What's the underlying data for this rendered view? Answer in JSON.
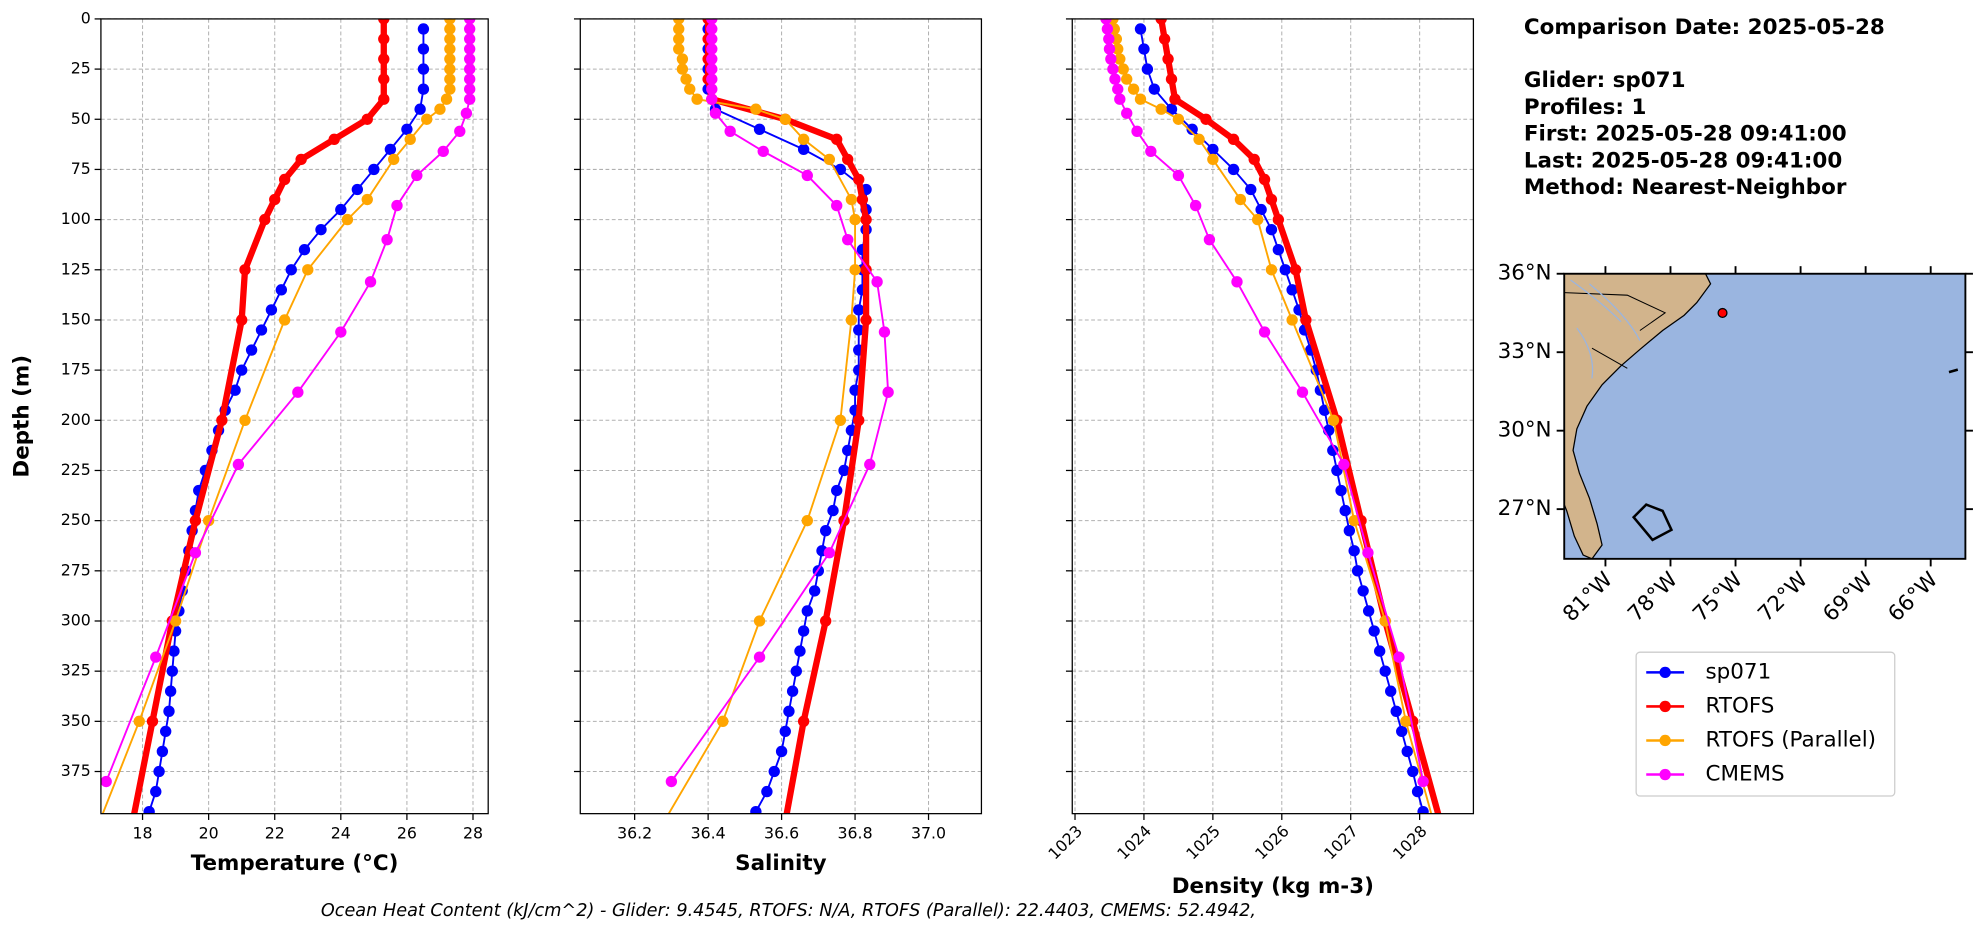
{
  "chart_data": [
    {
      "type": "line",
      "xlabel": "Temperature (°C)",
      "ylabel": "Depth (m)",
      "xlim": [
        16.74,
        28.46
      ],
      "ylim": [
        396,
        0
      ],
      "grid": true,
      "xticks": [
        18,
        20,
        22,
        24,
        26,
        28
      ],
      "yticks": [
        0,
        25,
        50,
        75,
        100,
        125,
        150,
        175,
        200,
        225,
        250,
        275,
        300,
        325,
        350,
        375
      ],
      "series": [
        {
          "name": "sp071",
          "color": "#0000ff",
          "linewidth": 1.5,
          "y": [
            5,
            15,
            25,
            35,
            45,
            55,
            65,
            75,
            85,
            95,
            105,
            115,
            125,
            135,
            145,
            155,
            165,
            175,
            185,
            195,
            205,
            215,
            225,
            235,
            245,
            255,
            265,
            275,
            285,
            295,
            305,
            315,
            325,
            335,
            345,
            355,
            365,
            375,
            385,
            395
          ],
          "x": [
            26.5,
            26.5,
            26.5,
            26.5,
            26.4,
            26.0,
            25.5,
            25.0,
            24.5,
            24.0,
            23.4,
            22.9,
            22.5,
            22.2,
            21.9,
            21.6,
            21.3,
            21.0,
            20.8,
            20.5,
            20.3,
            20.1,
            19.9,
            19.7,
            19.6,
            19.5,
            19.4,
            19.3,
            19.2,
            19.1,
            19.0,
            18.95,
            18.9,
            18.85,
            18.8,
            18.7,
            18.6,
            18.5,
            18.4,
            18.2
          ]
        },
        {
          "name": "RTOFS",
          "color": "#ff0000",
          "linewidth": 5,
          "y": [
            0,
            10,
            20,
            30,
            40,
            50,
            60,
            70,
            80,
            90,
            100,
            125,
            150,
            200,
            250,
            300,
            350,
            400
          ],
          "x": [
            25.3,
            25.3,
            25.3,
            25.3,
            25.3,
            24.8,
            23.8,
            22.8,
            22.3,
            22.0,
            21.7,
            21.1,
            21.0,
            20.4,
            19.6,
            18.9,
            18.3,
            17.7
          ]
        },
        {
          "name": "RTOFS (Parallel)",
          "color": "#ffa500",
          "linewidth": 1.5,
          "y": [
            0,
            5,
            10,
            15,
            20,
            25,
            30,
            35,
            40,
            45,
            50,
            60,
            70,
            90,
            100,
            125,
            150,
            200,
            250,
            300,
            350,
            400
          ],
          "x": [
            27.3,
            27.3,
            27.3,
            27.3,
            27.3,
            27.3,
            27.3,
            27.3,
            27.2,
            27.0,
            26.6,
            26.1,
            25.6,
            24.8,
            24.2,
            23.0,
            22.3,
            21.1,
            20.0,
            19.0,
            17.9,
            16.7
          ]
        },
        {
          "name": "CMEMS",
          "color": "#ff00ff",
          "linewidth": 1.5,
          "y": [
            0,
            5,
            10,
            15,
            20,
            25,
            30,
            35,
            40,
            47,
            56,
            66,
            78,
            93,
            110,
            131,
            156,
            186,
            222,
            266,
            318,
            380
          ],
          "x": [
            27.9,
            27.9,
            27.9,
            27.9,
            27.9,
            27.9,
            27.9,
            27.9,
            27.9,
            27.8,
            27.6,
            27.1,
            26.3,
            25.7,
            25.4,
            24.9,
            24.0,
            22.7,
            20.9,
            19.6,
            18.4,
            16.9
          ]
        }
      ]
    },
    {
      "type": "line",
      "xlabel": "Salinity",
      "xlim": [
        36.052,
        37.144
      ],
      "ylim": [
        396,
        0
      ],
      "grid": true,
      "xticks": [
        36.2,
        36.4,
        36.6,
        36.8,
        {
          "value": 37.0,
          "label": "37.0"
        }
      ],
      "series": [
        {
          "name": "sp071",
          "color": "#0000ff",
          "linewidth": 1.5,
          "y": [
            5,
            15,
            25,
            35,
            45,
            55,
            65,
            75,
            85,
            95,
            105,
            115,
            125,
            135,
            145,
            155,
            165,
            175,
            185,
            195,
            205,
            215,
            225,
            235,
            245,
            255,
            265,
            275,
            285,
            295,
            305,
            315,
            325,
            335,
            345,
            355,
            365,
            375,
            385,
            395
          ],
          "x": [
            36.4,
            36.4,
            36.4,
            36.4,
            36.42,
            36.54,
            36.66,
            36.76,
            36.83,
            36.83,
            36.83,
            36.82,
            36.82,
            36.82,
            36.81,
            36.81,
            36.81,
            36.81,
            36.8,
            36.8,
            36.79,
            36.78,
            36.77,
            36.75,
            36.74,
            36.72,
            36.71,
            36.7,
            36.69,
            36.67,
            36.66,
            36.65,
            36.64,
            36.63,
            36.62,
            36.61,
            36.6,
            36.58,
            36.56,
            36.53
          ]
        },
        {
          "name": "RTOFS",
          "color": "#ff0000",
          "linewidth": 5,
          "y": [
            0,
            10,
            20,
            30,
            40,
            50,
            60,
            70,
            80,
            90,
            100,
            125,
            150,
            200,
            250,
            300,
            350,
            400
          ],
          "x": [
            36.4,
            36.4,
            36.4,
            36.4,
            36.41,
            36.61,
            36.75,
            36.78,
            36.81,
            36.82,
            36.83,
            36.83,
            36.83,
            36.81,
            36.77,
            36.72,
            36.66,
            36.61
          ]
        },
        {
          "name": "RTOFS (Parallel)",
          "color": "#ffa500",
          "linewidth": 1.5,
          "y": [
            0,
            5,
            10,
            15,
            20,
            25,
            30,
            35,
            40,
            45,
            50,
            60,
            70,
            90,
            100,
            125,
            150,
            200,
            250,
            300,
            350,
            400
          ],
          "x": [
            36.32,
            36.32,
            36.32,
            36.32,
            36.33,
            36.33,
            36.34,
            36.35,
            36.37,
            36.53,
            36.61,
            36.66,
            36.73,
            36.79,
            36.8,
            36.8,
            36.79,
            36.76,
            36.67,
            36.54,
            36.44,
            36.28
          ]
        },
        {
          "name": "CMEMS",
          "color": "#ff00ff",
          "linewidth": 1.5,
          "y": [
            0,
            5,
            10,
            15,
            20,
            25,
            30,
            35,
            40,
            47,
            56,
            66,
            78,
            93,
            110,
            131,
            156,
            186,
            222,
            266,
            318,
            380
          ],
          "x": [
            36.41,
            36.41,
            36.41,
            36.41,
            36.41,
            36.41,
            36.41,
            36.41,
            36.41,
            36.42,
            36.46,
            36.55,
            36.67,
            36.75,
            36.78,
            36.86,
            36.88,
            36.89,
            36.84,
            36.73,
            36.54,
            36.3
          ]
        }
      ]
    },
    {
      "type": "line",
      "xlabel": "Density (kg m-3)",
      "xlim": [
        1022.96,
        1028.78
      ],
      "ylim": [
        396,
        0
      ],
      "grid": true,
      "xtick_rotation": 45,
      "xticks": [
        1023,
        1024,
        1025,
        1026,
        1027,
        1028
      ],
      "series": [
        {
          "name": "sp071",
          "color": "#0000ff",
          "linewidth": 1.5,
          "y": [
            5,
            15,
            25,
            35,
            45,
            55,
            65,
            75,
            85,
            95,
            105,
            115,
            125,
            135,
            145,
            155,
            165,
            175,
            185,
            195,
            205,
            215,
            225,
            235,
            245,
            255,
            265,
            275,
            285,
            295,
            305,
            315,
            325,
            335,
            345,
            355,
            365,
            375,
            385,
            395
          ],
          "x": [
            1023.95,
            1024.0,
            1024.05,
            1024.15,
            1024.4,
            1024.7,
            1025.0,
            1025.3,
            1025.55,
            1025.7,
            1025.85,
            1025.95,
            1026.05,
            1026.15,
            1026.25,
            1026.33,
            1026.42,
            1026.5,
            1026.56,
            1026.62,
            1026.68,
            1026.74,
            1026.8,
            1026.86,
            1026.92,
            1026.98,
            1027.05,
            1027.1,
            1027.18,
            1027.26,
            1027.34,
            1027.42,
            1027.5,
            1027.58,
            1027.66,
            1027.74,
            1027.82,
            1027.9,
            1027.97,
            1028.05
          ]
        },
        {
          "name": "RTOFS",
          "color": "#ff0000",
          "linewidth": 5,
          "y": [
            0,
            10,
            20,
            30,
            40,
            50,
            60,
            70,
            80,
            90,
            100,
            125,
            150,
            200,
            250,
            300,
            350,
            400
          ],
          "x": [
            1024.25,
            1024.3,
            1024.35,
            1024.4,
            1024.45,
            1024.9,
            1025.3,
            1025.6,
            1025.75,
            1025.85,
            1025.95,
            1026.2,
            1026.35,
            1026.8,
            1027.15,
            1027.5,
            1027.9,
            1028.3
          ]
        },
        {
          "name": "RTOFS (Parallel)",
          "color": "#ffa500",
          "linewidth": 1.5,
          "y": [
            0,
            5,
            10,
            15,
            20,
            25,
            30,
            35,
            40,
            45,
            50,
            60,
            70,
            90,
            100,
            125,
            150,
            200,
            250,
            300,
            350,
            400
          ],
          "x": [
            1023.55,
            1023.57,
            1023.6,
            1023.62,
            1023.65,
            1023.7,
            1023.75,
            1023.85,
            1023.95,
            1024.25,
            1024.5,
            1024.8,
            1025.0,
            1025.4,
            1025.65,
            1025.85,
            1026.15,
            1026.75,
            1027.05,
            1027.5,
            1027.8,
            1028.2
          ]
        },
        {
          "name": "CMEMS",
          "color": "#ff00ff",
          "linewidth": 1.5,
          "y": [
            0,
            5,
            10,
            15,
            20,
            25,
            30,
            35,
            40,
            47,
            56,
            66,
            78,
            93,
            110,
            131,
            156,
            186,
            222,
            266,
            318,
            380
          ],
          "x": [
            1023.45,
            1023.47,
            1023.49,
            1023.5,
            1023.52,
            1023.55,
            1023.58,
            1023.62,
            1023.65,
            1023.75,
            1023.9,
            1024.1,
            1024.5,
            1024.75,
            1024.95,
            1025.35,
            1025.75,
            1026.3,
            1026.9,
            1027.25,
            1027.7,
            1028.05
          ]
        }
      ]
    },
    {
      "type": "map",
      "xlim": [
        -82.9,
        -64.4
      ],
      "ylim": [
        25.1,
        36.0
      ],
      "xticks": [
        {
          "value": -81,
          "label": "81°W"
        },
        {
          "value": -78,
          "label": "78°W"
        },
        {
          "value": -75,
          "label": "75°W"
        },
        {
          "value": -72,
          "label": "72°W"
        },
        {
          "value": -69,
          "label": "69°W"
        },
        {
          "value": -66,
          "label": "66°W"
        }
      ],
      "yticks": [
        {
          "value": 27,
          "label": "27°N"
        },
        {
          "value": 30,
          "label": "30°N"
        },
        {
          "value": 33,
          "label": "33°N"
        },
        {
          "value": 36,
          "label": "36°N"
        }
      ],
      "points": {
        "lon": [
          -75.6
        ],
        "lat": [
          34.5
        ],
        "color": "#ff0000"
      }
    }
  ],
  "info_lines": [
    "Comparison Date: 2025-05-28",
    "",
    "Glider: sp071",
    "Profiles: 1",
    "First: 2025-05-28 09:41:00",
    "Last: 2025-05-28 09:41:00",
    "Method: Nearest-Neighbor"
  ],
  "footer": "Ocean Heat Content (kJ/cm^2) - Glider: 9.4545,  RTOFS: N/A,  RTOFS (Parallel): 22.4403,  CMEMS: 52.4942,"
}
